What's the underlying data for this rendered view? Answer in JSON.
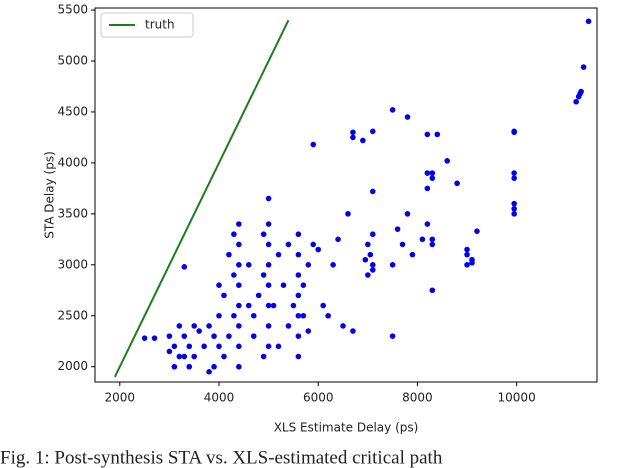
{
  "chart_data": {
    "type": "scatter",
    "xlabel": "XLS Estimate Delay (ps)",
    "ylabel": "STA Delay (ps)",
    "xlim": [
      1500,
      11620
    ],
    "ylim": [
      1850,
      5520
    ],
    "xticks": [
      2000,
      4000,
      6000,
      8000,
      10000
    ],
    "yticks": [
      2000,
      2500,
      3000,
      3500,
      4000,
      4500,
      5000,
      5500
    ],
    "legend": "upper left",
    "caption": "Fig. 1: Post-synthesis STA vs. XLS-estimated critical path",
    "series": [
      {
        "name": "truth",
        "color": "#1a7f1a",
        "mode": "line",
        "x": [
          1900,
          5400
        ],
        "values": [
          1900,
          5400
        ]
      },
      {
        "color": "#0000ee",
        "mode": "markers",
        "x": [
          11450,
          11350,
          11300,
          11250,
          11200,
          11280,
          9950,
          9950,
          9950,
          9950,
          9950,
          9950,
          9950,
          9200,
          9100,
          9100,
          9000,
          9000,
          9000,
          8800,
          8600,
          8400,
          8300,
          8300,
          8200,
          8200,
          8200,
          8300,
          8300,
          8300,
          8200,
          8100,
          7800,
          7800,
          7600,
          7500,
          7500,
          7500,
          7700,
          7900,
          7100,
          7100,
          7100,
          7100,
          7050,
          7000,
          6950,
          7000,
          7100,
          6900,
          6700,
          6700,
          6600,
          6700,
          6500,
          6400,
          6300,
          6200,
          6100,
          6000,
          5900,
          5900,
          5800,
          5700,
          5700,
          5800,
          5600,
          5600,
          5600,
          5600,
          5600,
          5600,
          5600,
          5500,
          5400,
          5400,
          5300,
          5200,
          5200,
          5100,
          5000,
          5000,
          5000,
          5000,
          5000,
          5000,
          5000,
          5000,
          4900,
          4900,
          4900,
          4800,
          4700,
          4700,
          4600,
          4600,
          4400,
          4400,
          4400,
          4400,
          4400,
          4400,
          4400,
          4400,
          4300,
          4300,
          4300,
          4200,
          4200,
          4100,
          4100,
          4000,
          4000,
          4000,
          3900,
          3900,
          3800,
          3800,
          3700,
          3600,
          3500,
          3500,
          3400,
          3400,
          3300,
          3300,
          3200,
          3200,
          3100,
          3100,
          3000,
          3000,
          2700,
          2500,
          3300
        ],
        "values": [
          5390,
          4940,
          4700,
          4650,
          4600,
          4680,
          4300,
          4310,
          3900,
          3850,
          3600,
          3550,
          3500,
          3330,
          3050,
          3020,
          3150,
          3000,
          3100,
          3800,
          4020,
          4280,
          3900,
          3850,
          4280,
          3900,
          3750,
          3250,
          3200,
          2750,
          3400,
          3250,
          4450,
          3500,
          3350,
          4520,
          3000,
          2300,
          3200,
          3100,
          4310,
          3720,
          3000,
          2950,
          3100,
          3200,
          3050,
          2900,
          3300,
          4220,
          4300,
          4250,
          3500,
          2350,
          2400,
          3250,
          3000,
          2500,
          2600,
          3150,
          4180,
          3200,
          2350,
          2500,
          2800,
          3000,
          3300,
          3100,
          2900,
          2700,
          2500,
          2300,
          2100,
          2600,
          3200,
          2400,
          2800,
          3100,
          2200,
          2600,
          3650,
          3400,
          3200,
          3000,
          2800,
          2600,
          2400,
          2200,
          3300,
          2900,
          2100,
          2700,
          2500,
          2300,
          3000,
          2600,
          3400,
          3200,
          3000,
          2800,
          2600,
          2400,
          2200,
          2000,
          3300,
          2900,
          2500,
          3100,
          2300,
          2700,
          2100,
          2800,
          2500,
          2200,
          2000,
          2300,
          1950,
          2400,
          2200,
          2350,
          2100,
          2400,
          2200,
          2000,
          2300,
          2980,
          2100,
          2400,
          2200,
          2000,
          2300,
          2150,
          2280,
          2280,
          2100
        ]
      }
    ]
  }
}
